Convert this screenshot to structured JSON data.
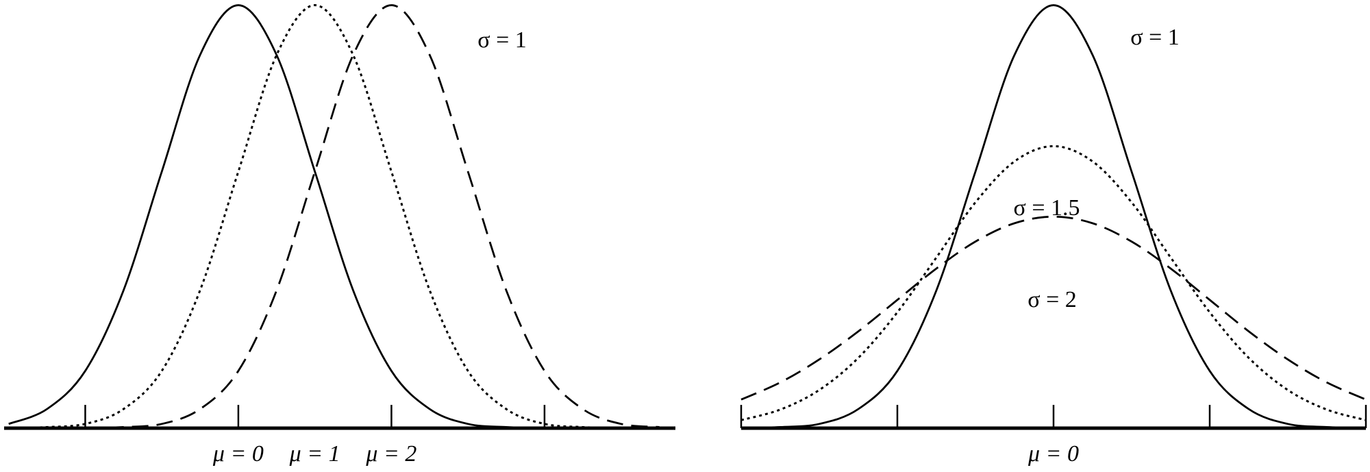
{
  "chart_data": [
    {
      "type": "line",
      "x": [
        -3,
        -2.5,
        -2,
        -1.5,
        -1,
        -0.5,
        0,
        0.5,
        1,
        1.5,
        2,
        2.5,
        3,
        3.5,
        4,
        4.5,
        5,
        5.5
      ],
      "series": [
        {
          "style": "solid",
          "color": "#000",
          "values": [
            0.004,
            0.018,
            0.054,
            0.13,
            0.242,
            0.352,
            0.399,
            0.352,
            0.242,
            0.13,
            0.054,
            0.018,
            0.004,
            0.001,
            0,
            0,
            0,
            0
          ]
        },
        {
          "style": "dotted",
          "color": "#000",
          "values": [
            0,
            0.001,
            0.004,
            0.018,
            0.054,
            0.13,
            0.242,
            0.352,
            0.399,
            0.352,
            0.242,
            0.13,
            0.054,
            0.018,
            0.004,
            0.001,
            0,
            0
          ]
        },
        {
          "style": "dashed",
          "color": "#000",
          "values": [
            0,
            0,
            0,
            0.001,
            0.004,
            0.018,
            0.054,
            0.13,
            0.242,
            0.352,
            0.399,
            0.352,
            0.242,
            0.13,
            0.054,
            0.018,
            0.004,
            0.001
          ]
        }
      ],
      "xlim": [
        -3.06,
        5.71
      ],
      "ylim": [
        0,
        0.4
      ],
      "xticks": [
        -2,
        0,
        2,
        4
      ],
      "xlabels": [
        {
          "text": "μ = 0",
          "x": 0
        },
        {
          "text": "μ = 1",
          "x": 1
        },
        {
          "text": "μ = 2",
          "x": 2
        }
      ],
      "annotations": [
        "σ = 1"
      ]
    },
    {
      "type": "line",
      "x": [
        -4,
        -3.5,
        -3,
        -2.5,
        -2,
        -1.5,
        -1,
        -0.5,
        0,
        0.5,
        1,
        1.5,
        2,
        2.5,
        3,
        3.5,
        4
      ],
      "series": [
        {
          "style": "solid",
          "color": "#000",
          "values": [
            0,
            0.001,
            0.004,
            0.018,
            0.054,
            0.13,
            0.242,
            0.352,
            0.399,
            0.352,
            0.242,
            0.13,
            0.054,
            0.018,
            0.004,
            0.001,
            0
          ]
        },
        {
          "style": "dotted",
          "color": "#000",
          "values": [
            0.0076,
            0.0175,
            0.036,
            0.0663,
            0.1093,
            0.161,
            0.213,
            0.2516,
            0.266,
            0.2516,
            0.213,
            0.161,
            0.1093,
            0.0663,
            0.036,
            0.0175,
            0.0076
          ]
        },
        {
          "style": "dashed",
          "color": "#000",
          "values": [
            0.027,
            0.0431,
            0.0648,
            0.0913,
            0.121,
            0.1506,
            0.176,
            0.1933,
            0.1995,
            0.1933,
            0.176,
            0.1506,
            0.121,
            0.0913,
            0.0648,
            0.0431,
            0.027
          ]
        }
      ],
      "xlim": [
        -4,
        4
      ],
      "ylim": [
        0,
        0.4
      ],
      "xticks": [
        -4,
        -2,
        0,
        2,
        4
      ],
      "xlabels": [
        {
          "text": "μ = 0",
          "x": 0
        }
      ],
      "annotations": [
        "σ = 1",
        "σ = 1.5",
        "σ = 2"
      ]
    }
  ]
}
